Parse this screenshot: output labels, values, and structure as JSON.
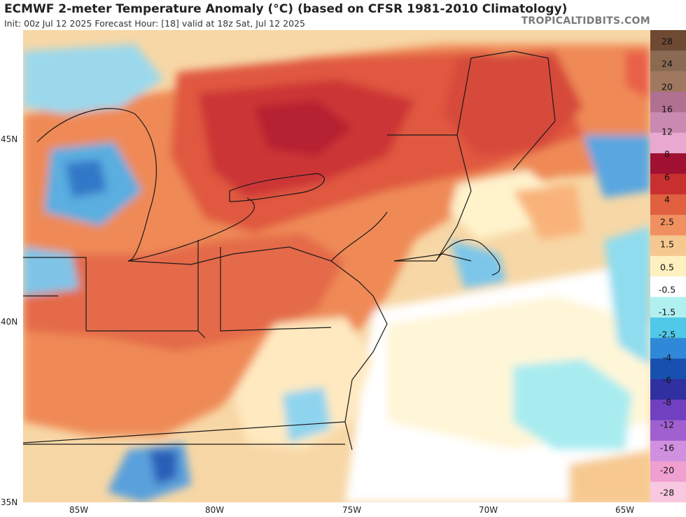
{
  "title": "ECMWF 2-meter Temperature Anomaly (°C) (based on CFSR 1981-2010 Climatology)",
  "subtitle": "Init: 00z Jul 12 2025   Forecast Hour: [18]   valid at 18z Sat, Jul 12 2025",
  "brand": "TROPICALTIDBITS.COM",
  "latitude_labels": [
    "45N",
    "40N",
    "35N"
  ],
  "longitude_labels": [
    "85W",
    "80W",
    "75W",
    "70W",
    "65W"
  ],
  "colorbar": {
    "labels": [
      "28",
      "24",
      "20",
      "16",
      "12",
      "8",
      "6",
      "4",
      "2.5",
      "1.5",
      "0.5",
      "-0.5",
      "-1.5",
      "-2.5",
      "-4",
      "-6",
      "-8",
      "-12",
      "-16",
      "-20",
      "-28"
    ],
    "colors": [
      "#6e4a33",
      "#8a6a52",
      "#a07860",
      "#b07090",
      "#c88ab0",
      "#e8a8d0",
      "#a01030",
      "#c83030",
      "#e06040",
      "#f09060",
      "#f5c890",
      "#fff0c0",
      "#ffffff",
      "#b0f0f0",
      "#50c8e8",
      "#3088d8",
      "#1850b0",
      "#3030a0",
      "#7040c0",
      "#a060d0",
      "#d090e0",
      "#f0a0d0",
      "#f8c8e0"
    ]
  }
}
